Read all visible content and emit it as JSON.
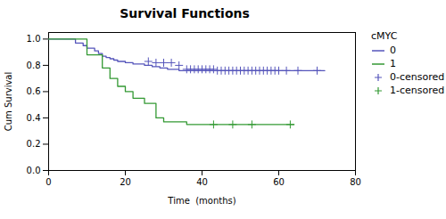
{
  "chart_data": {
    "type": "line",
    "title": "Survival Functions",
    "xlabel": "Time  (months)",
    "ylabel": "Cum Survival",
    "legend_title": "cMYC",
    "legend": "right",
    "grid": false,
    "xlim": [
      0,
      80
    ],
    "ylim": [
      0.0,
      1.05
    ],
    "xticks": [
      0,
      20,
      40,
      60,
      80
    ],
    "yticks": [
      {
        "value": 0.0,
        "label": "0.0"
      },
      {
        "value": 0.2,
        "label": "0.2"
      },
      {
        "value": 0.4,
        "label": "0.4"
      },
      {
        "value": 0.6,
        "label": "0.6"
      },
      {
        "value": 0.8,
        "label": "0.8"
      },
      {
        "value": 1.0,
        "label": "1.0"
      }
    ],
    "series": [
      {
        "name": "0",
        "type": "line",
        "line_style": "step",
        "color": "#5555bb",
        "x": [
          0,
          5,
          7,
          9,
          10,
          12,
          13,
          14,
          15,
          16,
          17,
          18,
          19,
          20,
          21,
          22,
          23,
          24,
          25,
          26,
          27,
          28,
          29,
          30,
          31,
          32,
          33,
          34,
          35,
          72
        ],
        "values": [
          1.0,
          1.0,
          0.97,
          0.95,
          0.93,
          0.91,
          0.89,
          0.87,
          0.86,
          0.85,
          0.84,
          0.83,
          0.83,
          0.82,
          0.82,
          0.81,
          0.81,
          0.81,
          0.8,
          0.8,
          0.79,
          0.79,
          0.78,
          0.78,
          0.77,
          0.77,
          0.77,
          0.76,
          0.76,
          0.76
        ]
      },
      {
        "name": "1",
        "type": "line",
        "line_style": "step",
        "color": "#339933",
        "x": [
          0,
          8,
          10,
          14,
          16,
          18,
          20,
          22,
          25,
          28,
          30,
          33,
          36,
          38,
          64
        ],
        "values": [
          1.0,
          1.0,
          0.88,
          0.78,
          0.7,
          0.64,
          0.6,
          0.55,
          0.51,
          0.4,
          0.37,
          0.37,
          0.35,
          0.35,
          0.35
        ]
      },
      {
        "name": "0-censored",
        "type": "scatter",
        "marker": "+",
        "color": "#5555bb",
        "x": [
          26,
          28,
          30,
          32,
          34,
          36,
          37,
          38,
          39,
          40,
          41,
          42,
          43,
          44,
          45,
          46,
          47,
          48,
          49,
          50,
          51,
          52,
          53,
          54,
          55,
          56,
          57,
          58,
          59,
          60,
          62,
          65,
          70
        ],
        "values": [
          0.83,
          0.82,
          0.82,
          0.82,
          0.8,
          0.77,
          0.77,
          0.77,
          0.77,
          0.77,
          0.77,
          0.77,
          0.77,
          0.76,
          0.76,
          0.76,
          0.76,
          0.76,
          0.76,
          0.76,
          0.76,
          0.76,
          0.76,
          0.76,
          0.76,
          0.76,
          0.76,
          0.76,
          0.76,
          0.76,
          0.76,
          0.76,
          0.76
        ]
      },
      {
        "name": "1-censored",
        "type": "scatter",
        "marker": "+",
        "color": "#339933",
        "x": [
          43,
          48,
          53,
          63
        ],
        "values": [
          0.35,
          0.35,
          0.35,
          0.35
        ]
      }
    ]
  }
}
